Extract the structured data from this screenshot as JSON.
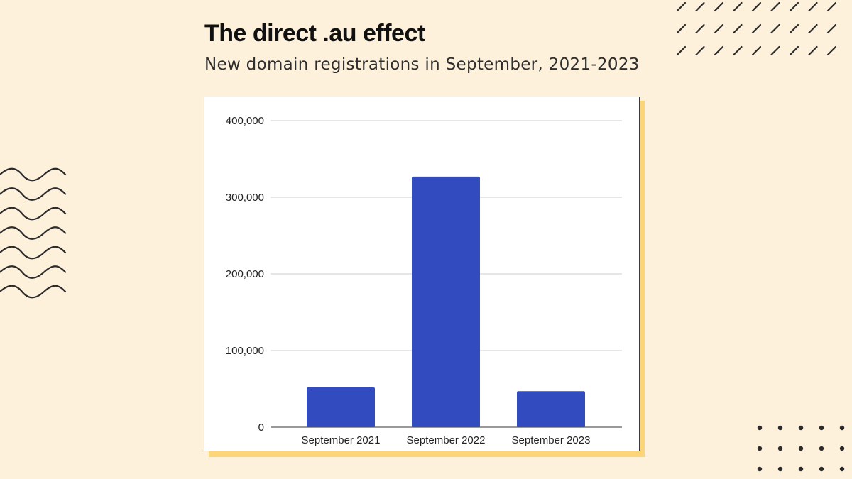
{
  "header": {
    "title": "The direct .au effect",
    "subtitle": "New domain registrations in September, 2021-2023"
  },
  "colors": {
    "background": "#fef1dc",
    "bar": "#324cbf",
    "card_shadow": "#fcd579",
    "decoration": "#2b2b2b"
  },
  "decorations": {
    "top_right": "diagonal-dash-pattern",
    "left": "wavy-lines-pattern",
    "bottom_right": "dot-grid-pattern"
  },
  "chart_data": {
    "type": "bar",
    "title": "",
    "xlabel": "",
    "ylabel": "",
    "categories": [
      "September 2021",
      "September 2022",
      "September 2023"
    ],
    "values": [
      52000,
      327000,
      47000
    ],
    "ylim": [
      0,
      400000
    ],
    "yticks": [
      0,
      100000,
      200000,
      300000,
      400000
    ],
    "ytick_labels": [
      "0",
      "100,000",
      "200,000",
      "300,000",
      "400,000"
    ],
    "grid": true,
    "legend": "none"
  }
}
